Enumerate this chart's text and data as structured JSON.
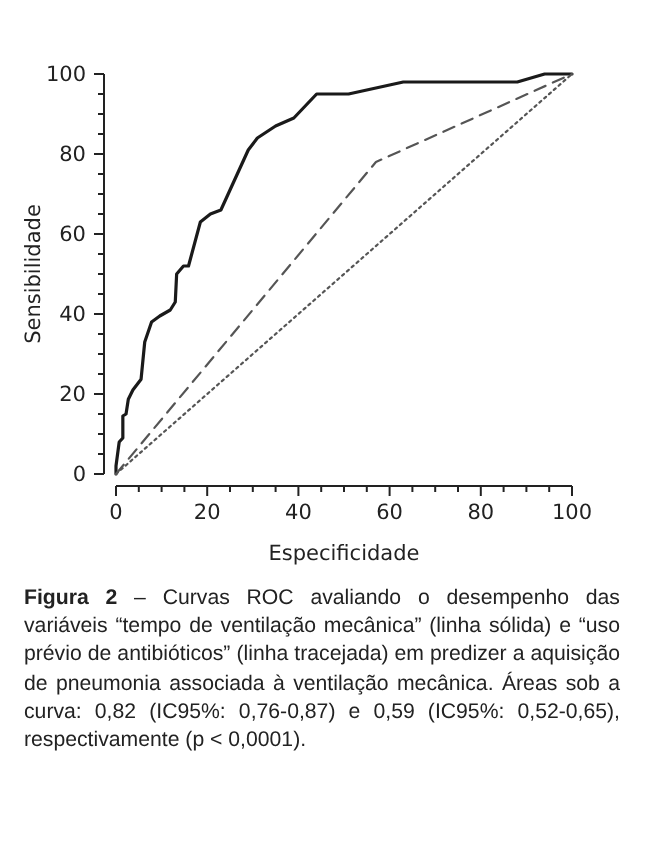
{
  "chart_data": {
    "type": "line",
    "xlabel": "Especificidade",
    "ylabel": "Sensibilidade",
    "xlim": [
      0,
      100
    ],
    "ylim": [
      0,
      100
    ],
    "xticks": [
      0,
      {
        "value": 5,
        "label": null
      },
      {
        "value": 10,
        "label": null
      },
      {
        "value": 15,
        "label": null
      },
      20,
      {
        "value": 25,
        "label": null
      },
      {
        "value": 30,
        "label": null
      },
      {
        "value": 35,
        "label": null
      },
      40,
      {
        "value": 45,
        "label": null
      },
      {
        "value": 50,
        "label": null
      },
      {
        "value": 55,
        "label": null
      },
      60,
      {
        "value": 65,
        "label": null
      },
      {
        "value": 70,
        "label": null
      },
      {
        "value": 75,
        "label": null
      },
      80,
      {
        "value": 85,
        "label": null
      },
      {
        "value": 90,
        "label": null
      },
      {
        "value": 95,
        "label": null
      },
      100
    ],
    "yticks": [
      0,
      {
        "value": 5,
        "label": null
      },
      {
        "value": 10,
        "label": null
      },
      {
        "value": 15,
        "label": null
      },
      20,
      {
        "value": 25,
        "label": null
      },
      {
        "value": 30,
        "label": null
      },
      {
        "value": 35,
        "label": null
      },
      40,
      {
        "value": 45,
        "label": null
      },
      {
        "value": 50,
        "label": null
      },
      {
        "value": 55,
        "label": null
      },
      60,
      {
        "value": 65,
        "label": null
      },
      {
        "value": 70,
        "label": null
      },
      {
        "value": 75,
        "label": null
      },
      80,
      {
        "value": 85,
        "label": null
      },
      {
        "value": 90,
        "label": null
      },
      {
        "value": 95,
        "label": null
      },
      100
    ],
    "series": [
      {
        "color": "#1a1a1a",
        "line_style": "solid",
        "x": [
          0,
          0,
          0.7,
          1.5,
          1.5,
          2.2,
          2.7,
          3.7,
          5.5,
          6.3,
          7.8,
          9.6,
          11.9,
          13,
          13.3,
          14.8,
          15.9,
          18.5,
          20.7,
          23,
          25,
          29,
          31,
          35,
          39,
          41.5,
          44,
          51,
          59,
          63,
          88,
          94,
          100
        ],
        "values": [
          0,
          2,
          8,
          9,
          14.5,
          15,
          18.7,
          21,
          23.7,
          33,
          38,
          39.5,
          41,
          43,
          50,
          52,
          52,
          63,
          65,
          66,
          71,
          81,
          84,
          87,
          89,
          92,
          95,
          95,
          97,
          98,
          98,
          100,
          100
        ]
      },
      {
        "color": "#555555",
        "line_style": "dashed",
        "x": [
          0,
          57,
          100
        ],
        "values": [
          0,
          78,
          100
        ]
      },
      {
        "color": "#555555",
        "line_style": "dotted",
        "x": [
          0,
          100
        ],
        "values": [
          0,
          100
        ]
      }
    ],
    "annotations": [
      "Figura 2",
      " – Curvas ROC avaliando o desempenho das variáveis “tempo de ventilação mecânica” (linha sólida) e “uso prévio de antibióticos” (linha tracejada) em predizer a aquisição de pneumonia associada à ventilação mecânica. Áreas sob a curva: 0,82 (IC95%: 0,76-0,87) e 0,59 (IC95%: 0,52-0,65), respectivamente (p < 0,0001)."
    ]
  }
}
